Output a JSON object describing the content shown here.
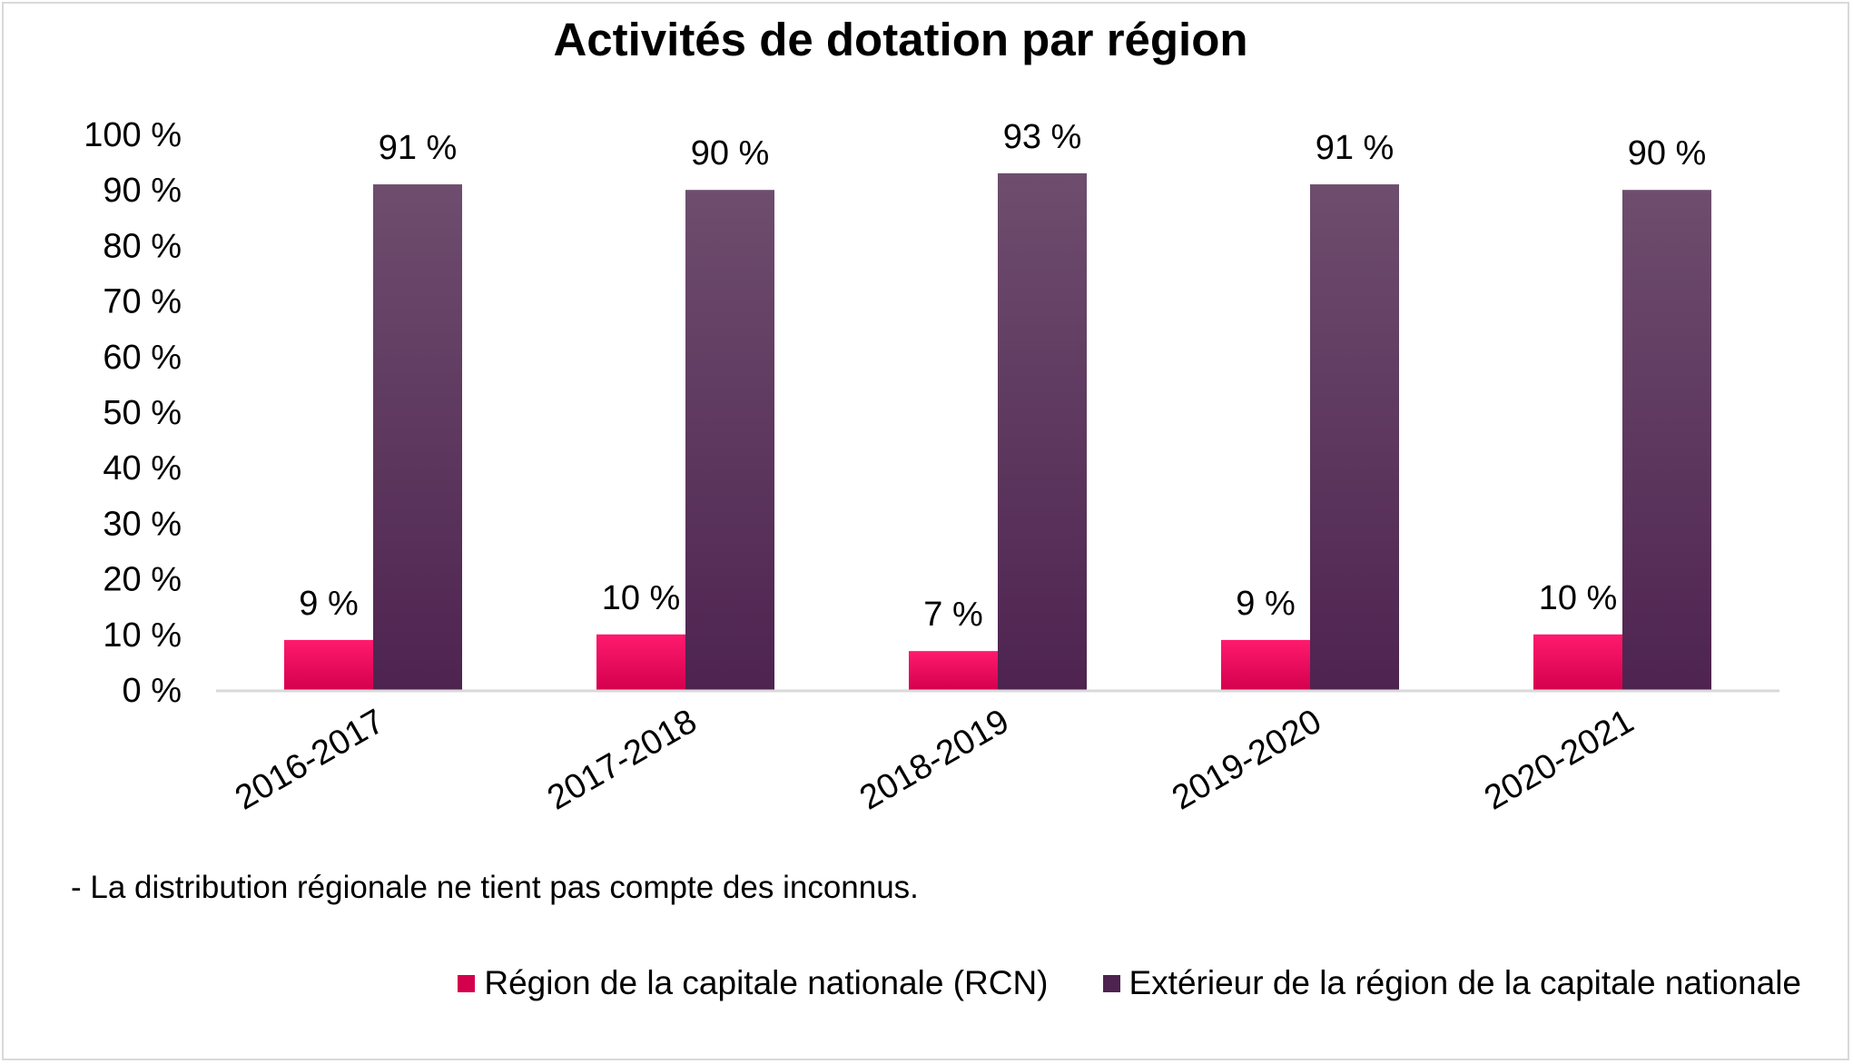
{
  "chart_data": {
    "type": "bar",
    "title": "Activités de dotation par région",
    "categories": [
      "2016-2017",
      "2017-2018",
      "2018-2019",
      "2019-2020",
      "2020-2021"
    ],
    "series": [
      {
        "name": "Région de la capitale nationale (RCN)",
        "color": "#d4004e",
        "color_light": "#ff1a6e",
        "values": [
          9,
          10,
          7,
          9,
          10
        ],
        "labels": [
          "9 %",
          "10 %",
          "7 %",
          "9 %",
          "10 %"
        ]
      },
      {
        "name": "Extérieur de la région de la capitale nationale",
        "color": "#4e2350",
        "color_light": "#6e4d6e",
        "values": [
          91,
          90,
          93,
          91,
          90
        ],
        "labels": [
          "91 %",
          "90 %",
          "93 %",
          "91 %",
          "90 %"
        ]
      }
    ],
    "ylim": [
      0,
      100
    ],
    "yticks": [
      "0 %",
      "10 %",
      "20 %",
      "30 %",
      "40 %",
      "50 %",
      "60 %",
      "70 %",
      "80 %",
      "90 %",
      "100 %"
    ],
    "xlabel": "",
    "ylabel": "",
    "grid": false,
    "legend_position": "bottom-right"
  },
  "footnote": "- La distribution régionale ne tient pas compte des inconnus."
}
